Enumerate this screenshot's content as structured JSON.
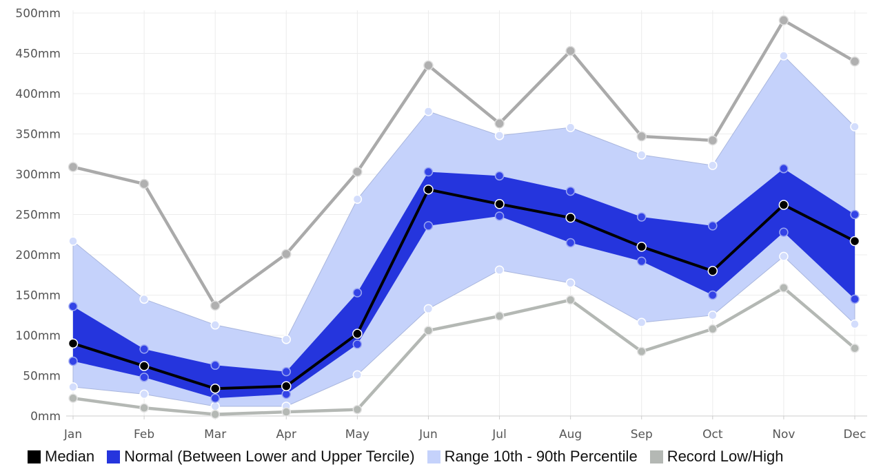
{
  "chart_data": {
    "type": "line",
    "categories": [
      "Jan",
      "Feb",
      "Mar",
      "Apr",
      "May",
      "Jun",
      "Jul",
      "Aug",
      "Sep",
      "Oct",
      "Nov",
      "Dec"
    ],
    "y_unit_suffix": "mm",
    "ylim": [
      0,
      500
    ],
    "yticks": [
      0,
      50,
      100,
      150,
      200,
      250,
      300,
      350,
      400,
      450,
      500
    ],
    "grid": true,
    "legend_position": "bottom",
    "colors": {
      "median": "#000000",
      "normal": "#2535dd",
      "range": "#c5d2fb",
      "record": "#aaaaaa",
      "record_low": "#b4b8b4",
      "grid": "#ececec",
      "axis": "#cccccc"
    },
    "series": {
      "record_high": [
        309,
        288,
        137,
        201,
        303,
        435,
        363,
        453,
        347,
        342,
        491,
        440
      ],
      "percentile_90": [
        217,
        145,
        113,
        95,
        269,
        378,
        348,
        358,
        324,
        311,
        447,
        359
      ],
      "upper_tercile": [
        136,
        83,
        63,
        55,
        153,
        303,
        298,
        279,
        247,
        236,
        307,
        250
      ],
      "median": [
        90,
        62,
        34,
        37,
        102,
        281,
        263,
        246,
        210,
        180,
        262,
        217
      ],
      "lower_tercile": [
        68,
        48,
        22,
        27,
        89,
        236,
        248,
        215,
        192,
        150,
        228,
        145
      ],
      "percentile_10": [
        36,
        27,
        12,
        12,
        51,
        133,
        181,
        165,
        116,
        125,
        198,
        114
      ],
      "record_low": [
        22,
        10,
        2,
        5,
        8,
        106,
        124,
        144,
        80,
        108,
        159,
        84
      ]
    },
    "legend": [
      {
        "key": "median",
        "label": "Median",
        "color": "#000000"
      },
      {
        "key": "normal",
        "label": "Normal (Between Lower and Upper Tercile)",
        "color": "#2535dd"
      },
      {
        "key": "range",
        "label": "Range 10th - 90th Percentile",
        "color": "#c5d2fb"
      },
      {
        "key": "record",
        "label": "Record Low/High",
        "color": "#b4b8b4"
      }
    ]
  }
}
